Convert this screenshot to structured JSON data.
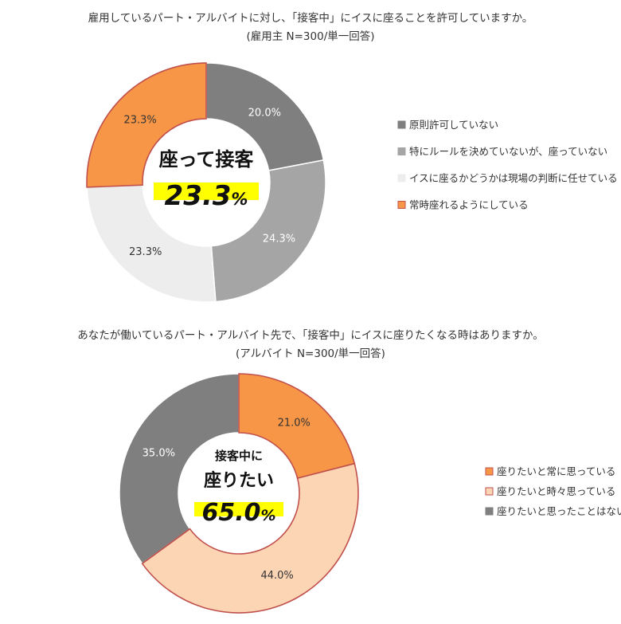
{
  "chart_data": [
    {
      "type": "pie",
      "title": "雇用しているパート・アルバイトに対し、「接客中」にイスに座ることを許可していますか。",
      "subtitle": "(雇用主 N=300/単一回答)",
      "categories": [
        "原則許可していない",
        "特にルールを決めていないが、座っていない",
        "イスに座るかどうかは現場の判断に任せている",
        "常時座れるようにしている"
      ],
      "values": [
        20.0,
        24.3,
        23.3,
        23.3
      ],
      "labels": [
        "20.0%",
        "24.3%",
        "23.3%",
        "23.3%"
      ],
      "colors": [
        "#7f7f7f",
        "#a5a5a5",
        "#ededed",
        "#f79646"
      ],
      "center_lines": [
        "座って接客"
      ],
      "center_value": "23.3",
      "center_unit": "%",
      "legend_position": "right"
    },
    {
      "type": "pie",
      "title": "あなたが働いているパート・アルバイト先で、「接客中」にイスに座りたくなる時はありますか。",
      "subtitle": "(アルバイト N=300/単一回答)",
      "categories": [
        "座りたいと常に思っている",
        "座りたいと時々思っている",
        "座りたいと思ったことはない"
      ],
      "values": [
        21.0,
        44.0,
        35.0
      ],
      "labels": [
        "21.0%",
        "44.0%",
        "35.0%"
      ],
      "colors": [
        "#f79646",
        "#fcd5b5",
        "#7f7f7f"
      ],
      "center_lines": [
        "接客中に",
        "座りたい"
      ],
      "center_value": "65.0",
      "center_unit": "%",
      "legend_position": "right"
    }
  ]
}
